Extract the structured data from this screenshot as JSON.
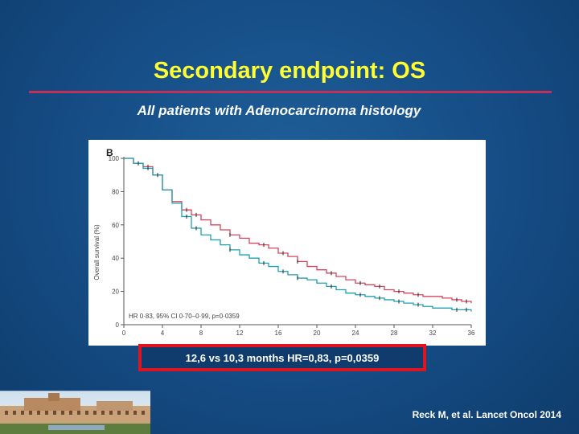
{
  "slide": {
    "title": "Secondary endpoint: OS",
    "subtitle": "All patients with Adenocarcinoma histology",
    "result_text": "12,6 vs 10,3 months HR=0,83, p=0,0359",
    "citation": "Reck M, et al. Lancet Oncol 2014"
  },
  "colors": {
    "title": "#ffff33",
    "rule": "#c2305a",
    "highlight_border": "#e0141e",
    "background": "#154c84"
  },
  "chart_data": {
    "type": "line",
    "panel_label": "B",
    "ylabel": "Overall survival (%)",
    "xlabel": "",
    "annotation": "HR 0·83, 95% CI 0·70–0·99, p=0·0359",
    "xlim": [
      0,
      36
    ],
    "ylim": [
      0,
      100
    ],
    "x_ticks": [
      0,
      4,
      8,
      12,
      16,
      20,
      24,
      28,
      32,
      36
    ],
    "y_ticks": [
      0,
      20,
      40,
      60,
      80,
      100
    ],
    "grid": false,
    "series": [
      {
        "color": "#d9445c",
        "x": [
          0,
          1,
          2,
          3,
          4,
          5,
          6,
          7,
          8,
          9,
          10,
          11,
          12,
          13,
          14,
          15,
          16,
          17,
          18,
          19,
          20,
          21,
          22,
          23,
          24,
          25,
          26,
          27,
          28,
          29,
          30,
          31,
          32,
          33,
          34,
          35,
          36
        ],
        "y": [
          100,
          97,
          95,
          90,
          81,
          74,
          69,
          66,
          63,
          60,
          57,
          54,
          52,
          49,
          48,
          46,
          43,
          41,
          38,
          35,
          33,
          31,
          29,
          27,
          25,
          24,
          23,
          21,
          20,
          19,
          18,
          17,
          17,
          16,
          15,
          14,
          13
        ]
      },
      {
        "color": "#1fa0b0",
        "x": [
          0,
          1,
          2,
          3,
          4,
          5,
          6,
          7,
          8,
          9,
          10,
          11,
          12,
          13,
          14,
          15,
          16,
          17,
          18,
          19,
          20,
          21,
          22,
          23,
          24,
          25,
          26,
          27,
          28,
          29,
          30,
          31,
          32,
          33,
          34,
          35,
          36
        ],
        "y": [
          100,
          97,
          94,
          90,
          81,
          73,
          65,
          58,
          54,
          51,
          48,
          45,
          42,
          40,
          37,
          35,
          32,
          30,
          28,
          27,
          25,
          23,
          21,
          19,
          18,
          17,
          16,
          15,
          14,
          13,
          12,
          11,
          10,
          10,
          9,
          9,
          8
        ]
      }
    ],
    "censor_marks": {
      "x": [
        1.5,
        2.5,
        3.5,
        6.5,
        7.5,
        11,
        14.5,
        16.5,
        18,
        21.5,
        24.5,
        26.5,
        28.5,
        30.5,
        34.5,
        35.5
      ]
    }
  }
}
